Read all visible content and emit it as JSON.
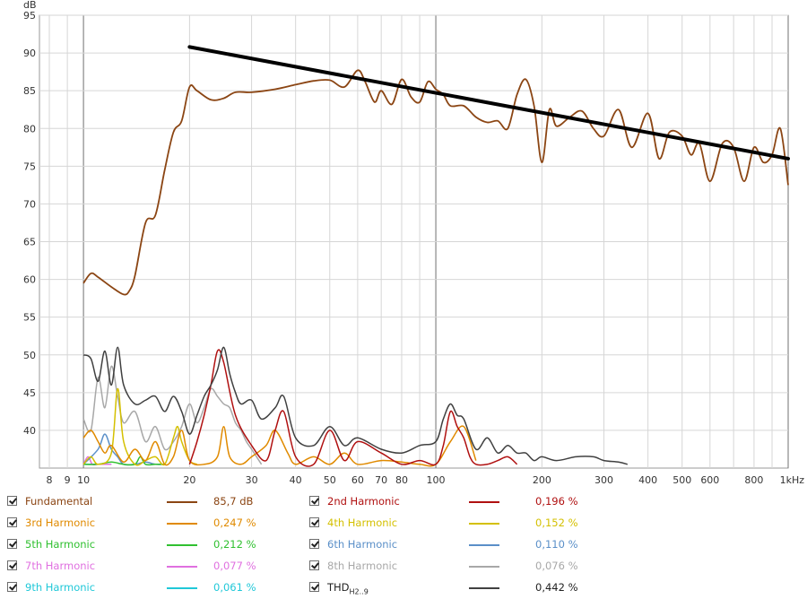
{
  "chart_data": {
    "type": "line",
    "ylabel": "dB",
    "ylim": [
      35,
      95
    ],
    "xlim": [
      7.5,
      1000
    ],
    "x_scale": "log",
    "grid": true,
    "y_ticks": [
      40,
      45,
      50,
      55,
      60,
      65,
      70,
      75,
      80,
      85,
      90,
      95
    ],
    "x_ticks": [
      {
        "value": 8,
        "label": "8"
      },
      {
        "value": 9,
        "label": "9"
      },
      {
        "value": 10,
        "label": "10"
      },
      {
        "value": 20,
        "label": "20"
      },
      {
        "value": 30,
        "label": "30"
      },
      {
        "value": 40,
        "label": "40"
      },
      {
        "value": 50,
        "label": "50"
      },
      {
        "value": 60,
        "label": "60"
      },
      {
        "value": 70,
        "label": "70"
      },
      {
        "value": 80,
        "label": "80"
      },
      {
        "value": 100,
        "label": "100"
      },
      {
        "value": 200,
        "label": "200"
      },
      {
        "value": 300,
        "label": "300"
      },
      {
        "value": 400,
        "label": "400"
      },
      {
        "value": 500,
        "label": "500"
      },
      {
        "value": 600,
        "label": "600"
      },
      {
        "value": 800,
        "label": "800"
      },
      {
        "value": 1000,
        "label": "1kHz"
      }
    ],
    "series": [
      {
        "name": "Fundamental",
        "color": "#8b4513",
        "x": [
          10,
          10.5,
          11,
          12,
          13,
          13.5,
          14,
          15,
          16,
          17,
          18,
          19,
          20,
          21,
          23,
          25,
          27,
          30,
          35,
          40,
          45,
          50,
          55,
          60,
          63,
          67,
          70,
          75,
          80,
          85,
          90,
          95,
          100,
          105,
          110,
          120,
          130,
          140,
          150,
          160,
          170,
          180,
          190,
          200,
          210,
          220,
          240,
          260,
          280,
          300,
          330,
          360,
          400,
          430,
          460,
          500,
          530,
          560,
          600,
          650,
          700,
          750,
          800,
          850,
          900,
          950,
          1000
        ],
        "y": [
          59.5,
          60.8,
          60.3,
          59.0,
          58.0,
          58.5,
          60.5,
          67.5,
          68.5,
          74.5,
          79.5,
          81.0,
          85.5,
          85.0,
          83.8,
          84.0,
          84.8,
          84.8,
          85.2,
          85.8,
          86.3,
          86.4,
          85.5,
          87.7,
          86.2,
          83.5,
          85.0,
          83.2,
          86.5,
          84.2,
          83.5,
          86.2,
          85.2,
          84.5,
          83.0,
          83.0,
          81.5,
          80.8,
          81.0,
          80.0,
          84.5,
          86.5,
          83.0,
          75.5,
          82.5,
          80.3,
          81.5,
          82.3,
          80.0,
          79.0,
          82.5,
          77.5,
          82.0,
          76.0,
          79.5,
          79.0,
          76.5,
          78.0,
          73.0,
          78.0,
          77.5,
          73.0,
          77.5,
          75.5,
          76.5,
          80.0,
          72.5
        ]
      },
      {
        "name": "2nd Harmonic",
        "color": "#b01010",
        "x": [
          20,
          21,
          22,
          23,
          24,
          25,
          27,
          30,
          33,
          35,
          37,
          40,
          45,
          50,
          55,
          60,
          70,
          80,
          90,
          100,
          105,
          110,
          115,
          120,
          125,
          130,
          140,
          150,
          160,
          170
        ],
        "y": [
          35.5,
          38.5,
          42.0,
          46.0,
          50.5,
          49.0,
          42.0,
          38.0,
          36.0,
          40.0,
          42.5,
          36.5,
          35.5,
          40.0,
          36.0,
          38.5,
          37.0,
          35.5,
          36.0,
          35.5,
          38.0,
          42.5,
          40.5,
          39.0,
          36.5,
          35.5,
          35.5,
          36.0,
          36.5,
          35.5
        ]
      },
      {
        "name": "3rd Harmonic",
        "color": "#e08a00",
        "x": [
          10,
          10.5,
          11,
          11.5,
          12,
          13,
          14,
          15,
          16,
          17,
          18,
          19,
          20,
          22,
          24,
          25,
          26,
          28,
          30,
          33,
          35,
          38,
          40,
          45,
          50,
          55,
          60,
          70,
          80,
          90,
          100,
          110,
          120,
          130
        ],
        "y": [
          39.0,
          40.0,
          38.5,
          37.0,
          38.0,
          35.8,
          37.5,
          36.0,
          38.5,
          35.5,
          36.5,
          40.0,
          36.0,
          35.5,
          36.5,
          40.5,
          36.5,
          35.5,
          36.5,
          38.0,
          40.0,
          37.0,
          35.5,
          36.5,
          35.5,
          37.0,
          35.5,
          36.0,
          35.8,
          35.5,
          35.5,
          38.5,
          40.5,
          36.0
        ]
      },
      {
        "name": "4th Harmonic",
        "color": "#d4c000",
        "x": [
          10,
          10.5,
          11,
          12,
          12.5,
          13,
          14,
          15,
          16,
          17,
          18,
          18.5,
          19,
          20,
          21
        ],
        "y": [
          35.5,
          36.5,
          35.5,
          37.0,
          45.5,
          38.5,
          35.5,
          36.0,
          36.5,
          35.5,
          39.0,
          40.5,
          38.5,
          36.0,
          35.5
        ]
      },
      {
        "name": "5th Harmonic",
        "color": "#30c030",
        "x": [
          10,
          11,
          12,
          13,
          14,
          14.5,
          15,
          16,
          17
        ],
        "y": [
          35.5,
          35.5,
          35.8,
          35.5,
          35.5,
          36.5,
          35.5,
          35.5,
          35.5
        ]
      },
      {
        "name": "6th Harmonic",
        "color": "#5a8fc8",
        "x": [
          10,
          11,
          11.5,
          12,
          12.5,
          13,
          14,
          15,
          16,
          17
        ],
        "y": [
          35.5,
          37.5,
          39.5,
          37.5,
          36.5,
          35.5,
          35.5,
          35.8,
          35.5,
          35.5
        ]
      },
      {
        "name": "7th Harmonic",
        "color": "#e070e0",
        "x": [
          10,
          10.3,
          10.6,
          11,
          12
        ],
        "y": [
          35.5,
          36.5,
          35.5,
          35.5,
          35.5
        ]
      },
      {
        "name": "8th Harmonic",
        "color": "#a8a8a8",
        "x": [
          10,
          10.5,
          11,
          11.5,
          12,
          12.5,
          13,
          14,
          15,
          16,
          17,
          18,
          19,
          20,
          21,
          22,
          23,
          24,
          25,
          26,
          27,
          28,
          29,
          30,
          32
        ],
        "y": [
          41.5,
          40.0,
          47.0,
          43.0,
          48.5,
          44.5,
          41.0,
          42.5,
          38.5,
          40.5,
          37.5,
          38.5,
          40.5,
          43.5,
          41.0,
          43.0,
          45.5,
          44.5,
          43.5,
          43.0,
          41.0,
          40.0,
          38.5,
          37.5,
          35.5
        ]
      },
      {
        "name": "9th Harmonic",
        "color": "#20c8d8",
        "x": [
          10,
          11,
          12
        ],
        "y": [
          35.5,
          35.5,
          35.5
        ]
      },
      {
        "name": "THD",
        "color": "#404040",
        "x": [
          10,
          10.5,
          11,
          11.5,
          12,
          12.5,
          13,
          14,
          15,
          16,
          17,
          18,
          19,
          20,
          21,
          22,
          23,
          24,
          25,
          26,
          27,
          28,
          30,
          32,
          35,
          37,
          40,
          45,
          50,
          55,
          60,
          70,
          80,
          90,
          100,
          105,
          110,
          115,
          120,
          130,
          140,
          150,
          160,
          170,
          180,
          190,
          200,
          220,
          250,
          280,
          300,
          330,
          350
        ],
        "y": [
          50.0,
          49.5,
          46.5,
          50.5,
          46.0,
          51.0,
          46.0,
          43.5,
          44.0,
          44.5,
          42.5,
          44.5,
          42.5,
          39.5,
          42.0,
          44.5,
          46.0,
          48.0,
          51.0,
          47.5,
          45.0,
          43.5,
          44.0,
          41.5,
          43.0,
          44.5,
          39.0,
          38.0,
          40.5,
          38.0,
          39.0,
          37.5,
          37.0,
          38.0,
          38.5,
          41.5,
          43.5,
          42.0,
          41.5,
          37.5,
          39.0,
          37.0,
          38.0,
          37.0,
          37.0,
          36.0,
          36.5,
          36.0,
          36.5,
          36.5,
          36.0,
          35.8,
          35.5
        ]
      }
    ],
    "annotations": [
      {
        "type": "trend-line",
        "color": "#000000",
        "x": [
          20,
          1000
        ],
        "y": [
          90.8,
          76.0
        ]
      }
    ]
  },
  "legend": {
    "items": [
      {
        "label": "Fundamental",
        "color": "#8b4513",
        "value": "85,7 dB"
      },
      {
        "label": "2nd Harmonic",
        "color": "#b01010",
        "value": "0,196 %"
      },
      {
        "label": "3rd Harmonic",
        "color": "#e08a00",
        "value": "0,247 %"
      },
      {
        "label": "4th Harmonic",
        "color": "#d4c000",
        "value": "0,152 %"
      },
      {
        "label": "5th Harmonic",
        "color": "#30c030",
        "value": "0,212 %"
      },
      {
        "label": "6th Harmonic",
        "color": "#5a8fc8",
        "value": "0,110 %"
      },
      {
        "label": "7th Harmonic",
        "color": "#e070e0",
        "value": "0,077 %"
      },
      {
        "label": "8th Harmonic",
        "color": "#a8a8a8",
        "value": "0,076 %"
      },
      {
        "label": "9th Harmonic",
        "color": "#20c8d8",
        "value": "0,061 %"
      },
      {
        "label": "THD",
        "sublabel": "H2..9",
        "color": "#404040",
        "value": "0,442 %"
      }
    ]
  }
}
